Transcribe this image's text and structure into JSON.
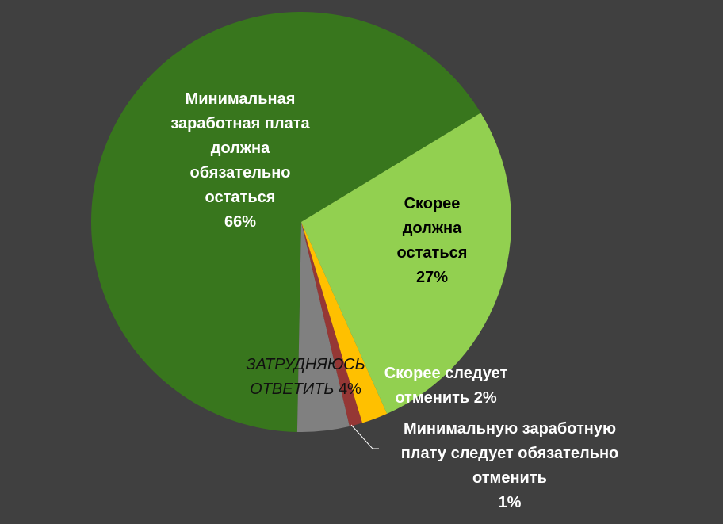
{
  "chart_data": {
    "type": "pie",
    "categories": [
      "Скорее должна остаться",
      "Скорее следует отменить",
      "Минимальную заработную плату следует обязательно отменить",
      "ЗАТРУДНЯЮСЬ ОТВЕТИТЬ",
      "Минимальная заработная плата должна обязательно остаться"
    ],
    "values": [
      27,
      2,
      1,
      4,
      66
    ],
    "value_labels": [
      "27%",
      "2%",
      "1%",
      "4%",
      "66%"
    ],
    "colors": [
      "#92d050",
      "#ffc000",
      "#953735",
      "#808080",
      "#38761d"
    ]
  }
}
